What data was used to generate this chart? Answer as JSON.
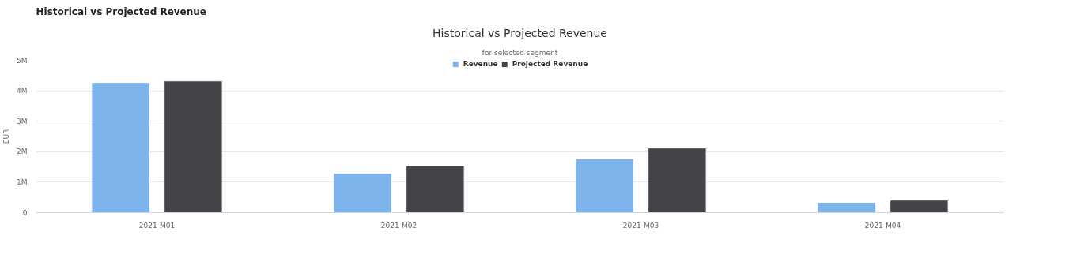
{
  "chart_data": {
    "type": "bar",
    "title": "Historical vs Projected Revenue",
    "subtitle": "for selected segment",
    "annotations": [
      "Historical vs Projected Revenue"
    ],
    "ylabel": "EUR",
    "categories": [
      "2021-M01",
      "2021-M02",
      "2021-M03",
      "2021-M04"
    ],
    "series": [
      {
        "name": "Revenue",
        "color": "#7cb4eb",
        "values": [
          4270000,
          1290000,
          1770000,
          340000
        ]
      },
      {
        "name": "Projected Revenue",
        "color": "#434348",
        "values": [
          4320000,
          1540000,
          2120000,
          410000
        ]
      }
    ],
    "ylim": [
      0,
      5000000
    ],
    "yticks": [
      0,
      {
        "value": 1000000,
        "label": "1M"
      },
      {
        "value": 2000000,
        "label": "2M"
      },
      {
        "value": 3000000,
        "label": "3M"
      },
      {
        "value": 4000000,
        "label": "4M"
      },
      {
        "value": 5000000,
        "label": "5M"
      }
    ],
    "grid": "y",
    "legend": "top"
  }
}
